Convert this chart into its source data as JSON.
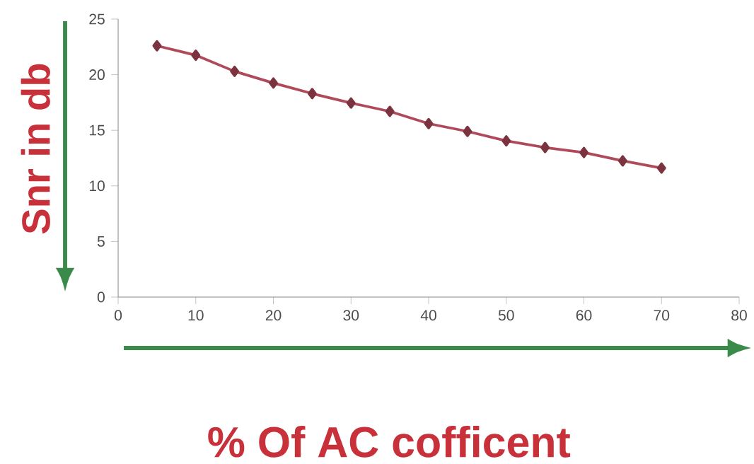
{
  "chart_data": {
    "type": "line",
    "xlabel": "% Of AC cofficent",
    "ylabel": "Snr in db",
    "x": [
      5,
      10,
      15,
      20,
      25,
      30,
      35,
      40,
      45,
      50,
      55,
      60,
      65,
      70
    ],
    "values": [
      22.6,
      21.75,
      20.3,
      19.25,
      18.3,
      17.45,
      16.7,
      15.6,
      14.9,
      14.05,
      13.45,
      13.0,
      12.25,
      11.6
    ],
    "color": "#b04a5a",
    "marker": "diamond",
    "xlim": [
      0,
      80
    ],
    "xticks": [
      0,
      10,
      20,
      30,
      40,
      50,
      60,
      70,
      80
    ],
    "ylim": [
      0,
      25
    ],
    "yticks": [
      0,
      5,
      10,
      15,
      20,
      25
    ]
  }
}
